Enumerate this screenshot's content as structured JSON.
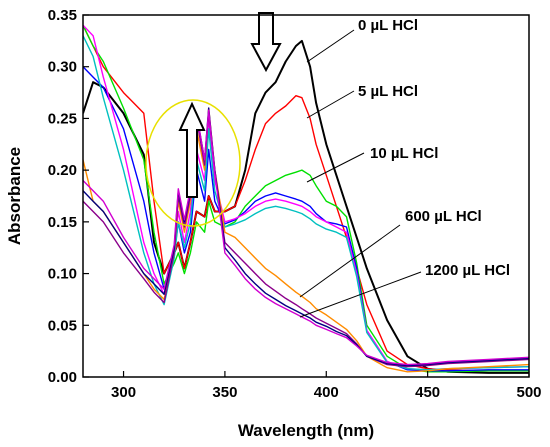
{
  "chart_data": {
    "type": "line",
    "title": "",
    "xlabel": "Wavelength (nm)",
    "ylabel": "Absorbance",
    "xlim": [
      280,
      500
    ],
    "ylim": [
      0.0,
      0.35
    ],
    "x_ticks": [
      300,
      350,
      400,
      450,
      500
    ],
    "x_tick_labels": [
      "300",
      "350",
      "400",
      "450",
      "500"
    ],
    "y_ticks": [
      0.0,
      0.05,
      0.1,
      0.15,
      0.2,
      0.25,
      0.3,
      0.35
    ],
    "y_tick_labels": [
      "0.00",
      "0.05",
      "0.10",
      "0.15",
      "0.20",
      "0.25",
      "0.30",
      "0.35"
    ],
    "grid": false,
    "legend": "none",
    "x": [
      280,
      285,
      290,
      300,
      310,
      315,
      320,
      325,
      327,
      330,
      333,
      336,
      340,
      342,
      345,
      350,
      355,
      360,
      365,
      370,
      375,
      380,
      385,
      388,
      392,
      395,
      400,
      405,
      410,
      415,
      420,
      430,
      440,
      450,
      460,
      480,
      500
    ],
    "series": [
      {
        "color": "#000000",
        "values": [
          0.255,
          0.285,
          0.28,
          0.255,
          0.215,
          0.13,
          0.1,
          0.12,
          0.13,
          0.105,
          0.13,
          0.16,
          0.155,
          0.175,
          0.16,
          0.16,
          0.165,
          0.2,
          0.255,
          0.275,
          0.285,
          0.305,
          0.32,
          0.325,
          0.3,
          0.265,
          0.225,
          0.195,
          0.165,
          0.135,
          0.105,
          0.055,
          0.02,
          0.008,
          0.005,
          0.004,
          0.004
        ]
      },
      {
        "color": "#ff0000",
        "values": [
          0.34,
          0.32,
          0.3,
          0.275,
          0.255,
          0.17,
          0.1,
          0.12,
          0.13,
          0.105,
          0.13,
          0.16,
          0.155,
          0.175,
          0.16,
          0.16,
          0.165,
          0.19,
          0.22,
          0.245,
          0.255,
          0.262,
          0.272,
          0.27,
          0.25,
          0.225,
          0.195,
          0.165,
          0.135,
          0.105,
          0.07,
          0.025,
          0.012,
          0.008,
          0.007,
          0.006,
          0.006
        ]
      },
      {
        "color": "#00e000",
        "values": [
          0.34,
          0.32,
          0.305,
          0.26,
          0.21,
          0.14,
          0.09,
          0.11,
          0.12,
          0.1,
          0.12,
          0.15,
          0.14,
          0.17,
          0.15,
          0.145,
          0.15,
          0.165,
          0.175,
          0.185,
          0.19,
          0.195,
          0.198,
          0.2,
          0.195,
          0.185,
          0.17,
          0.165,
          0.155,
          0.11,
          0.05,
          0.02,
          0.008,
          0.005,
          0.005,
          0.006,
          0.006
        ]
      },
      {
        "color": "#0000ff",
        "values": [
          0.3,
          0.29,
          0.28,
          0.24,
          0.17,
          0.12,
          0.085,
          0.12,
          0.15,
          0.12,
          0.14,
          0.2,
          0.17,
          0.22,
          0.17,
          0.148,
          0.152,
          0.16,
          0.17,
          0.175,
          0.178,
          0.175,
          0.172,
          0.17,
          0.165,
          0.158,
          0.15,
          0.148,
          0.145,
          0.105,
          0.045,
          0.015,
          0.007,
          0.006,
          0.006,
          0.007,
          0.007
        ]
      },
      {
        "color": "#ff00ff",
        "values": [
          0.34,
          0.33,
          0.29,
          0.22,
          0.13,
          0.1,
          0.08,
          0.12,
          0.16,
          0.13,
          0.16,
          0.22,
          0.19,
          0.25,
          0.19,
          0.15,
          0.153,
          0.158,
          0.165,
          0.17,
          0.172,
          0.17,
          0.167,
          0.165,
          0.16,
          0.155,
          0.15,
          0.145,
          0.14,
          0.1,
          0.045,
          0.015,
          0.008,
          0.007,
          0.008,
          0.009,
          0.01
        ]
      },
      {
        "color": "#00c0c0",
        "values": [
          0.33,
          0.31,
          0.27,
          0.2,
          0.12,
          0.09,
          0.07,
          0.115,
          0.15,
          0.125,
          0.15,
          0.21,
          0.18,
          0.24,
          0.18,
          0.145,
          0.148,
          0.152,
          0.158,
          0.163,
          0.165,
          0.163,
          0.16,
          0.158,
          0.153,
          0.148,
          0.143,
          0.14,
          0.135,
          0.097,
          0.043,
          0.014,
          0.008,
          0.007,
          0.008,
          0.009,
          0.01
        ]
      },
      {
        "color": "#ff8c00",
        "values": [
          0.21,
          0.17,
          0.16,
          0.13,
          0.1,
          0.085,
          0.075,
          0.12,
          0.17,
          0.14,
          0.17,
          0.24,
          0.2,
          0.26,
          0.2,
          0.14,
          0.135,
          0.125,
          0.115,
          0.105,
          0.098,
          0.09,
          0.082,
          0.078,
          0.072,
          0.066,
          0.06,
          0.053,
          0.046,
          0.035,
          0.02,
          0.009,
          0.005,
          0.006,
          0.008,
          0.01,
          0.012
        ]
      },
      {
        "color": "#8b008b",
        "values": [
          0.17,
          0.16,
          0.15,
          0.12,
          0.095,
          0.082,
          0.072,
          0.12,
          0.175,
          0.145,
          0.175,
          0.25,
          0.205,
          0.255,
          0.2,
          0.13,
          0.12,
          0.11,
          0.1,
          0.09,
          0.083,
          0.076,
          0.07,
          0.066,
          0.061,
          0.057,
          0.052,
          0.047,
          0.042,
          0.032,
          0.02,
          0.012,
          0.01,
          0.011,
          0.013,
          0.015,
          0.017
        ]
      },
      {
        "color": "#000080",
        "values": [
          0.18,
          0.17,
          0.16,
          0.13,
          0.1,
          0.09,
          0.08,
          0.125,
          0.18,
          0.15,
          0.18,
          0.255,
          0.21,
          0.26,
          0.2,
          0.125,
          0.113,
          0.1,
          0.09,
          0.081,
          0.075,
          0.069,
          0.064,
          0.061,
          0.057,
          0.053,
          0.049,
          0.044,
          0.04,
          0.031,
          0.02,
          0.013,
          0.011,
          0.012,
          0.014,
          0.016,
          0.018
        ]
      },
      {
        "color": "#d000d0",
        "values": [
          0.19,
          0.18,
          0.17,
          0.135,
          0.105,
          0.095,
          0.085,
          0.128,
          0.182,
          0.152,
          0.182,
          0.255,
          0.21,
          0.258,
          0.198,
          0.12,
          0.108,
          0.095,
          0.085,
          0.077,
          0.071,
          0.066,
          0.061,
          0.058,
          0.054,
          0.05,
          0.046,
          0.042,
          0.038,
          0.03,
          0.021,
          0.014,
          0.012,
          0.013,
          0.015,
          0.017,
          0.019
        ]
      }
    ],
    "annotations": [
      {
        "text": "0 µL HCl"
      },
      {
        "text": "5 µL HCl"
      },
      {
        "text": "10 µL HCl"
      },
      {
        "text": "600 µL HCl"
      },
      {
        "text": "1200 µL HCl"
      }
    ],
    "arrows": [
      {
        "direction": "up"
      },
      {
        "direction": "down"
      }
    ],
    "ellipse_color": "#e8e000"
  }
}
